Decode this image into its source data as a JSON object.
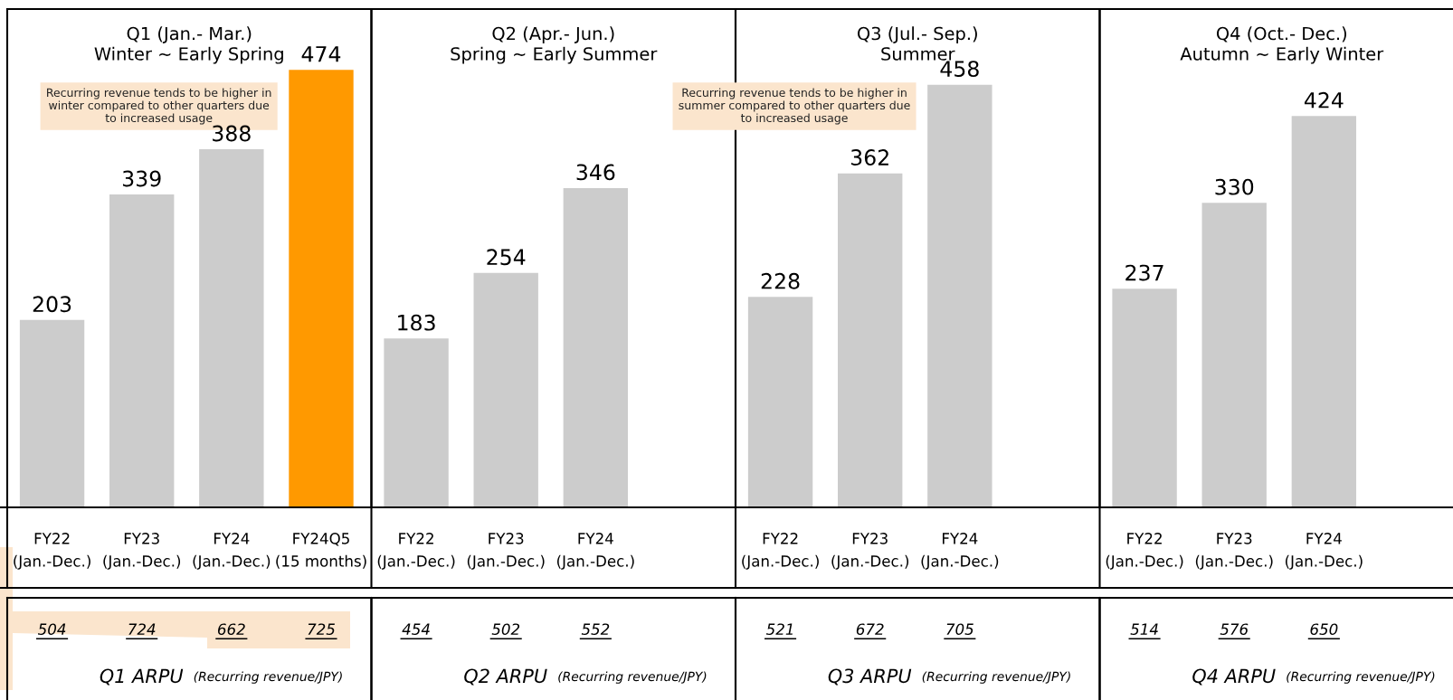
{
  "chart_data": [
    {
      "type": "bar",
      "title": "Q1 (Jan.- Mar.)\nWinter ~ Early Spring",
      "categories": [
        "FY22\n(Jan.-Dec.)",
        "FY23\n(Jan.-Dec.)",
        "FY24\n(Jan.-Dec.)",
        "FY24Q5\n(15 months)"
      ],
      "values": [
        203,
        339,
        388,
        474
      ],
      "colors": [
        "#cccccc",
        "#cccccc",
        "#cccccc",
        "#ff9900"
      ],
      "data_labels": true,
      "ylim": [
        0,
        540
      ],
      "tick_labels": "x",
      "grid": false,
      "annotations": [
        "Recurring revenue tends to be higher in\nwinter compared to other quarters due\nto increased usage"
      ]
    },
    {
      "type": "bar",
      "title": "Q2 (Apr.- Jun.)\nSpring ~ Early Summer",
      "categories": [
        "FY22\n(Jan.-Dec.)",
        "FY23\n(Jan.-Dec.)",
        "FY24\n(Jan.-Dec.)"
      ],
      "values": [
        183,
        254,
        346
      ],
      "colors": [
        "#cccccc",
        "#cccccc",
        "#cccccc"
      ],
      "data_labels": true,
      "ylim": [
        0,
        540
      ],
      "tick_labels": "x",
      "grid": false
    },
    {
      "type": "bar",
      "title": "Q3 (Jul.- Sep.)\nSummer",
      "categories": [
        "FY22\n(Jan.-Dec.)",
        "FY23\n(Jan.-Dec.)",
        "FY24\n(Jan.-Dec.)"
      ],
      "values": [
        228,
        362,
        458
      ],
      "colors": [
        "#cccccc",
        "#cccccc",
        "#cccccc"
      ],
      "data_labels": true,
      "ylim": [
        0,
        540
      ],
      "tick_labels": "x",
      "grid": false,
      "annotations": [
        "Recurring revenue tends to be higher in\nsummer compared to other quarters due\nto increased usage"
      ]
    },
    {
      "type": "bar",
      "title": "Q4 (Oct.- Dec.)\nAutumn ~ Early Winter",
      "categories": [
        "FY22\n(Jan.-Dec.)",
        "FY23\n(Jan.-Dec.)",
        "FY24\n(Jan.-Dec.)"
      ],
      "values": [
        237,
        330,
        424
      ],
      "colors": [
        "#cccccc",
        "#cccccc",
        "#cccccc"
      ],
      "data_labels": true,
      "ylim": [
        0,
        540
      ],
      "tick_labels": "x",
      "grid": false
    },
    {
      "type": "other",
      "title": "Q1 ARPU (Recurring revenue/JPY)",
      "values": [
        504,
        724,
        662,
        725
      ],
      "data_labels": true
    },
    {
      "type": "other",
      "title": "Q2 ARPU (Recurring revenue/JPY)",
      "values": [
        454,
        502,
        552
      ],
      "data_labels": true
    },
    {
      "type": "other",
      "title": "Q3 ARPU (Recurring revenue/JPY)",
      "values": [
        521,
        672,
        705
      ],
      "data_labels": true
    },
    {
      "type": "other",
      "title": "Q4 ARPU (Recurring revenue/JPY)",
      "values": [
        514,
        576,
        650
      ],
      "data_labels": true
    }
  ]
}
